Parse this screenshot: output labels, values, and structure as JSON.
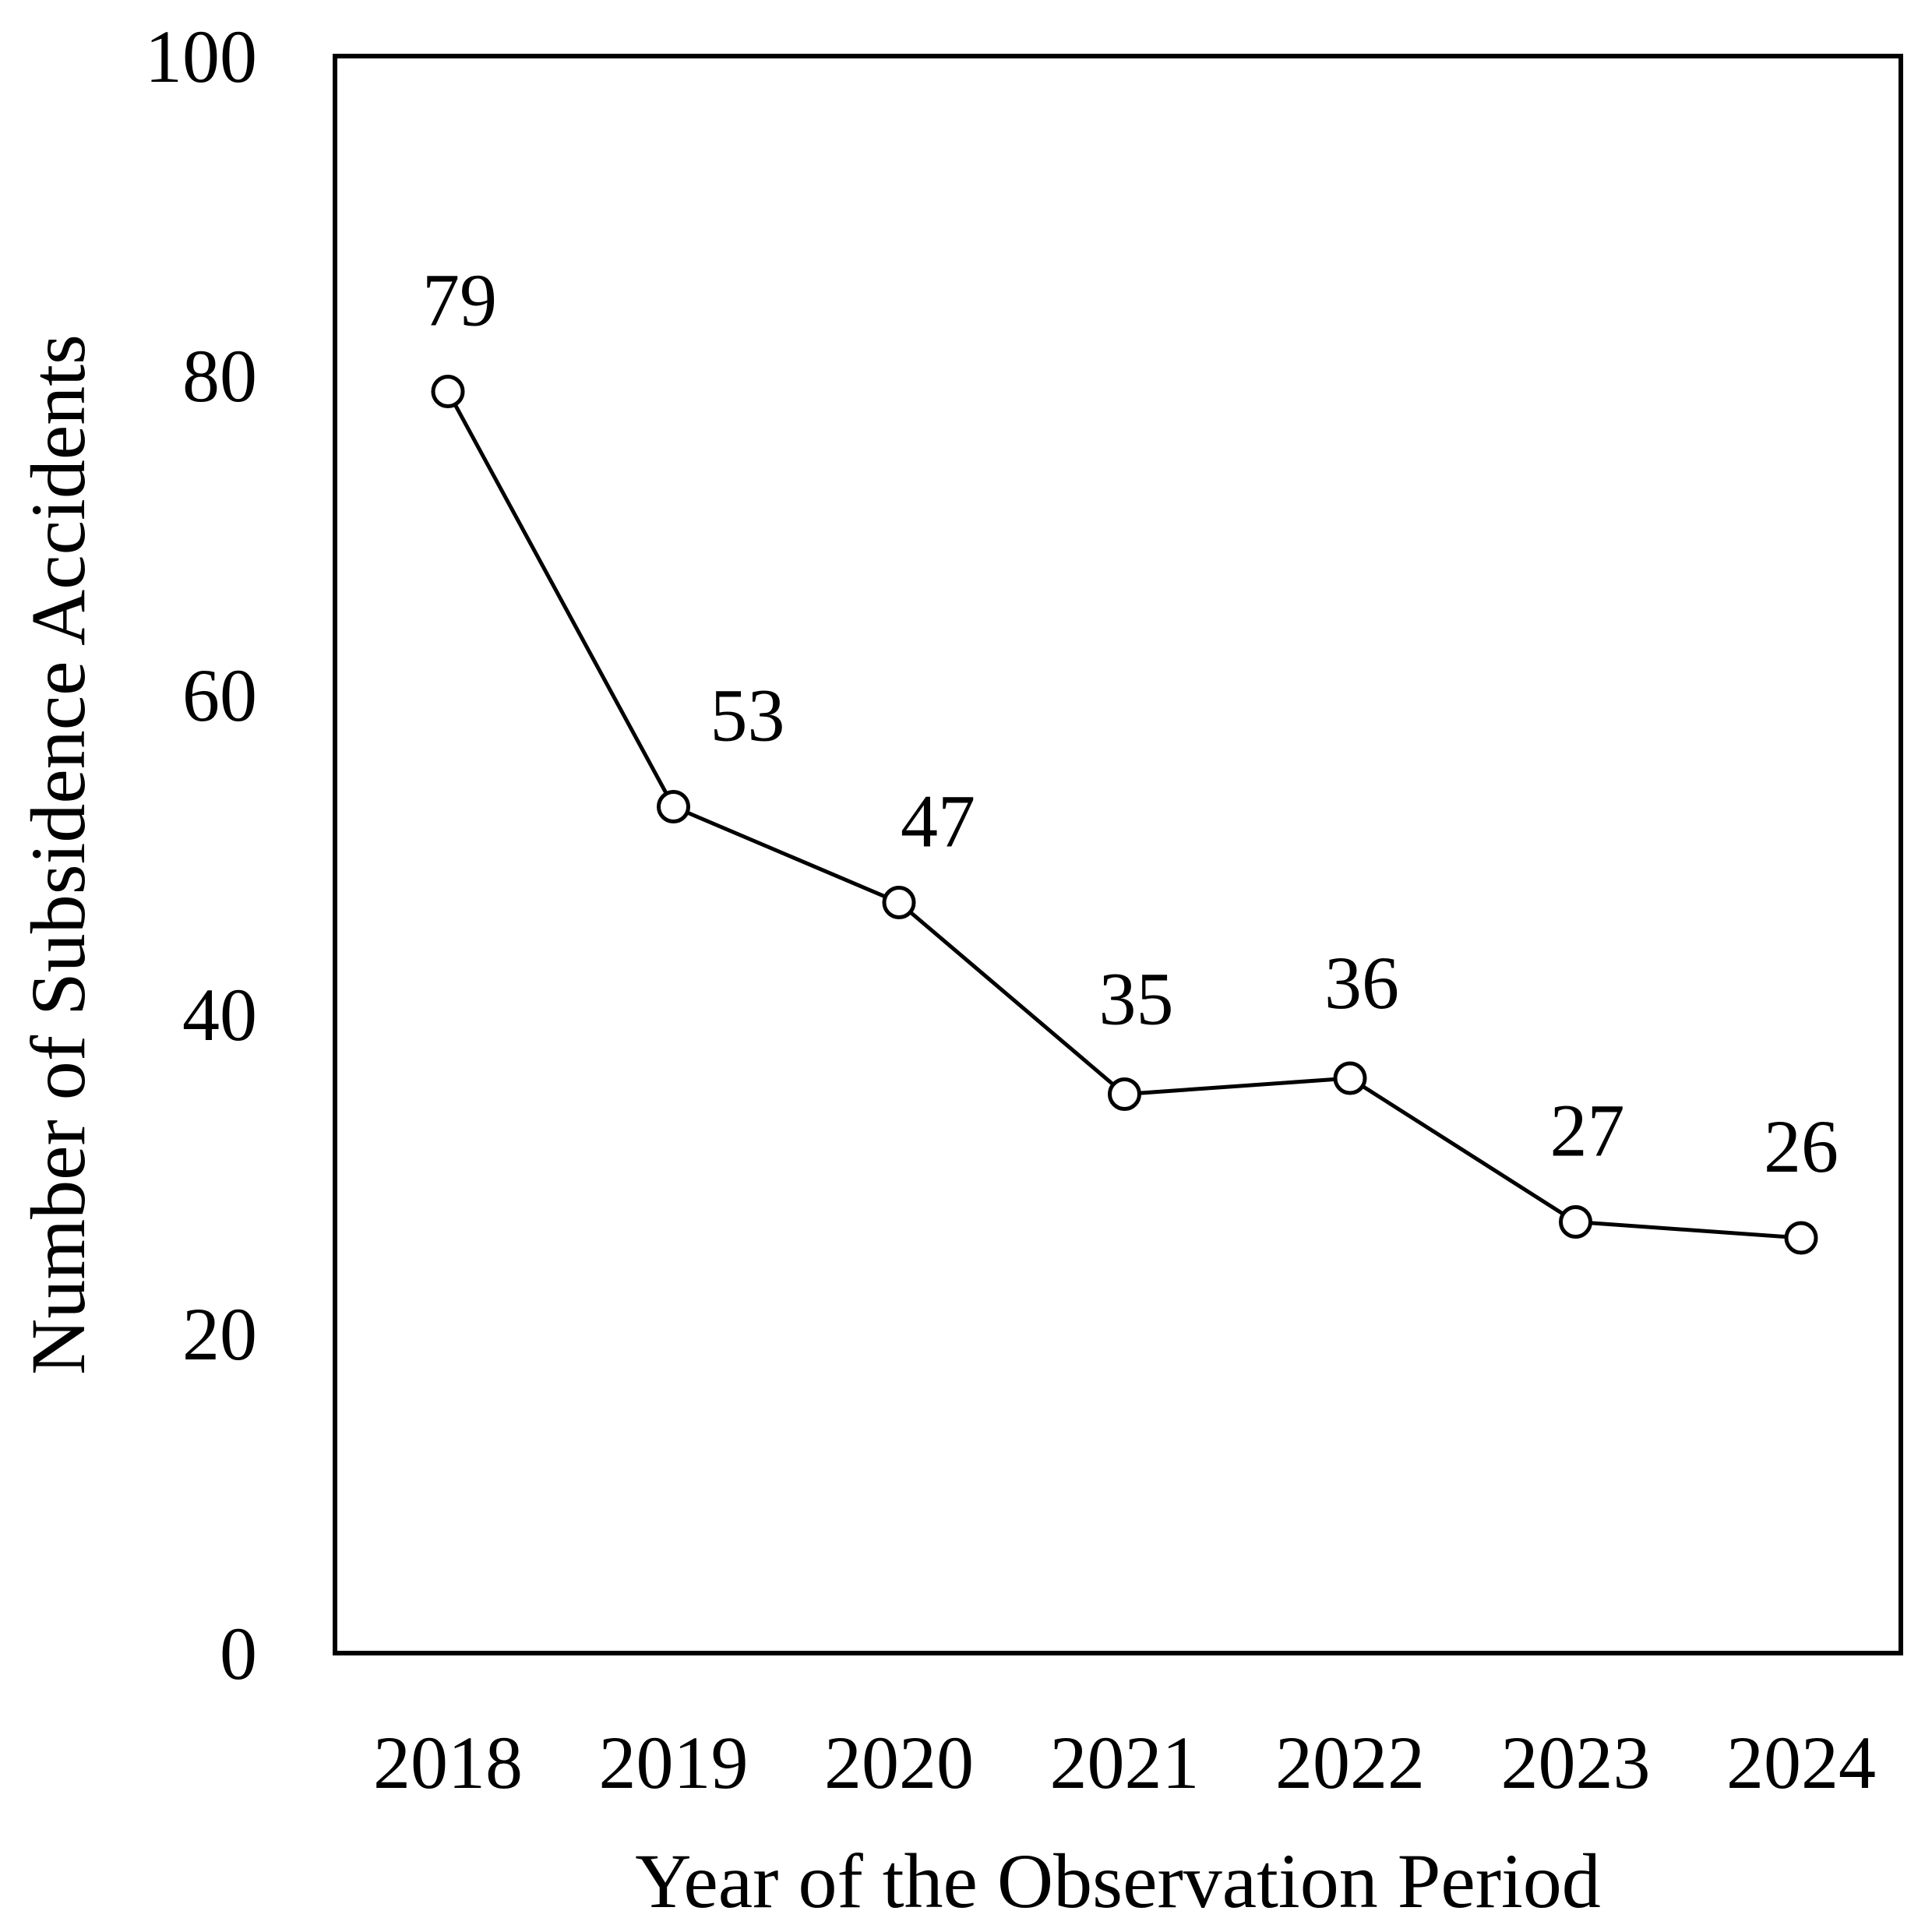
{
  "chart_data": {
    "type": "line",
    "title": "",
    "xlabel": "Year of the Observation Period",
    "ylabel": "Number of Subsidence Accidents",
    "categories": [
      "2018",
      "2019",
      "2020",
      "2021",
      "2022",
      "2023",
      "2024"
    ],
    "series": [
      {
        "values": [
          79,
          53,
          47,
          35,
          36,
          27,
          26
        ],
        "data_labels": [
          "79",
          "53",
          "47",
          "35",
          "36",
          "27",
          "26"
        ],
        "marker": "hollow-circle",
        "line_color": "#000000"
      }
    ],
    "ylim": [
      0,
      100
    ],
    "yticks": [
      0,
      20,
      40,
      60,
      80,
      100
    ],
    "ytick_labels": [
      "0",
      "20",
      "40",
      "60",
      "80",
      "100"
    ],
    "grid": false,
    "legend": "none"
  }
}
